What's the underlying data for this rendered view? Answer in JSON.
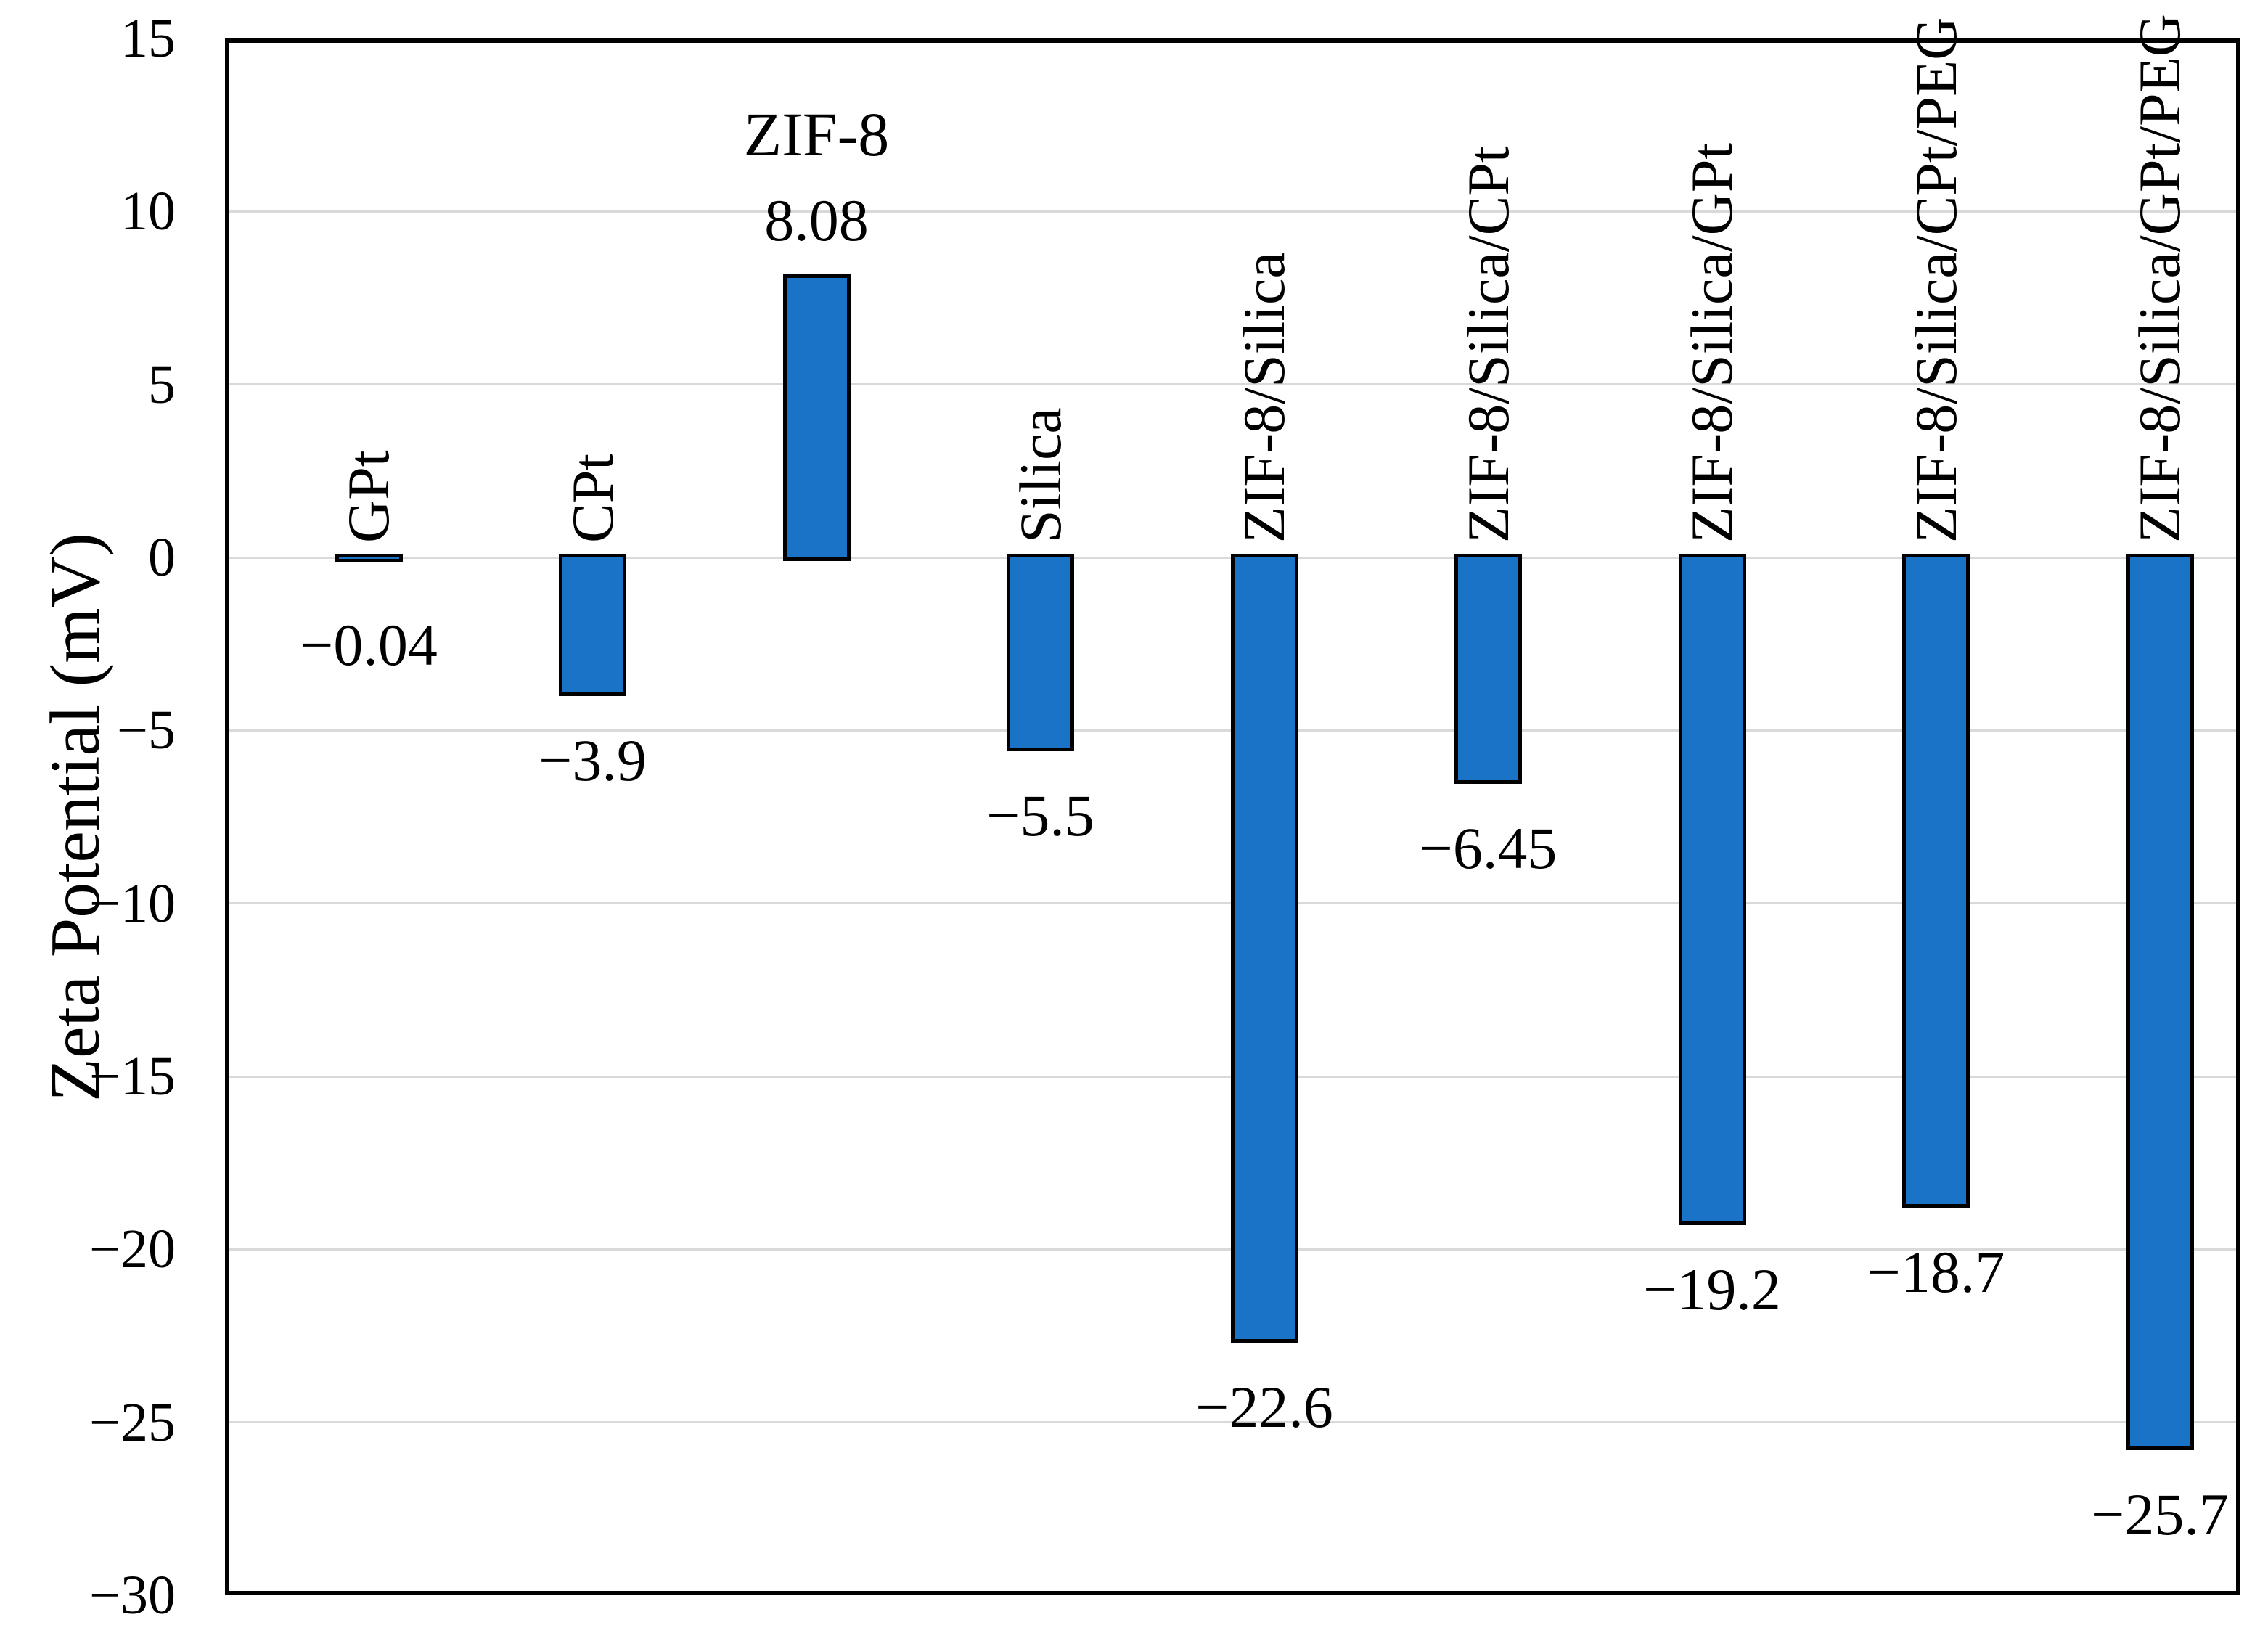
{
  "chart_data": {
    "type": "bar",
    "title": "",
    "xlabel": "",
    "ylabel": "Zeta Potential (mV)",
    "categories": [
      "GPt",
      "CPt",
      "ZIF-8",
      "Silica",
      "ZIF-8/Silica",
      "ZIF-8/Silica/CPt",
      "ZIF-8/Silica/GPt",
      "ZIF-8/Silica/CPt/PEG",
      "ZIF-8/Silica/GPt/PEG"
    ],
    "values": [
      -0.04,
      -3.9,
      8.08,
      -5.5,
      -22.6,
      -6.45,
      -19.2,
      -18.7,
      -25.7
    ],
    "value_labels": [
      "−0.04",
      "−3.9",
      "8.08",
      "−5.5",
      "−22.6",
      "−6.45",
      "−19.2",
      "−18.7",
      "−25.7"
    ],
    "ylim": [
      -30,
      15
    ],
    "ytick_step": 5,
    "yticks": [
      "15",
      "10",
      "5",
      "0",
      "−5",
      "−10",
      "−15",
      "−20",
      "−25",
      "−30"
    ],
    "ytick_values": [
      15,
      10,
      5,
      0,
      -5,
      -10,
      -15,
      -20,
      -25,
      -30
    ],
    "grid": true,
    "legend": "none",
    "bar_fill_color": "#1b73c8",
    "bar_border_color": "#000000",
    "gridline_color": "#d9d9d9",
    "axis_color": "#000000",
    "background_color": "#ffffff"
  }
}
